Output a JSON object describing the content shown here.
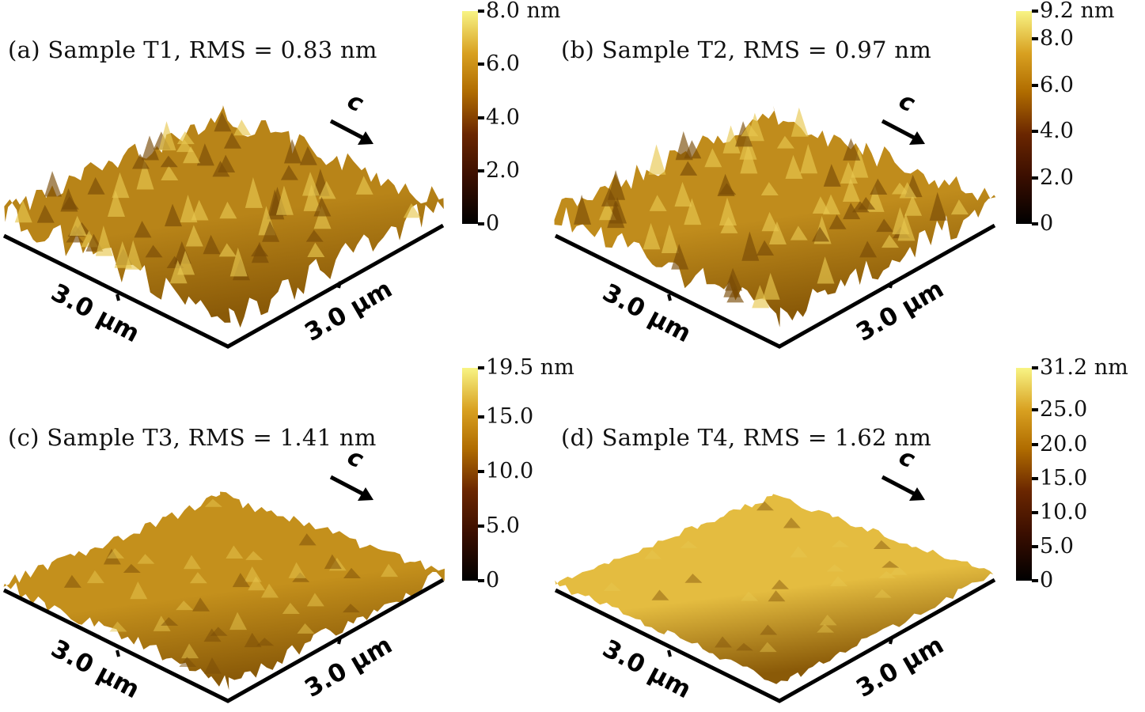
{
  "panels": [
    {
      "id": "a",
      "title": "(a)  Sample T1, RMS = 0.83 nm",
      "max": 8.0,
      "ticks": [
        {
          "v": 0,
          "label": "0"
        },
        {
          "v": 2,
          "label": "2.0"
        },
        {
          "v": 4,
          "label": "4.0"
        },
        {
          "v": 6,
          "label": "6.0"
        },
        {
          "v": 8,
          "label": "8.0 nm"
        }
      ],
      "x_label": "3.0 μm",
      "y_label": "3.0 μm",
      "direction_label": "c",
      "roughness": 1.0,
      "tone": "#b88418"
    },
    {
      "id": "b",
      "title": "(b)  Sample T2, RMS = 0.97 nm",
      "max": 9.2,
      "ticks": [
        {
          "v": 0,
          "label": "0"
        },
        {
          "v": 2,
          "label": "2.0"
        },
        {
          "v": 4,
          "label": "4.0"
        },
        {
          "v": 6,
          "label": "6.0"
        },
        {
          "v": 8,
          "label": "8.0"
        },
        {
          "v": 9.2,
          "label": "9.2 nm"
        }
      ],
      "x_label": "3.0 μm",
      "y_label": "3.0 μm",
      "direction_label": "c",
      "roughness": 1.0,
      "tone": "#c08c1c"
    },
    {
      "id": "c",
      "title": "(c)  Sample T3, RMS = 1.41 nm",
      "max": 19.5,
      "ticks": [
        {
          "v": 0,
          "label": "0"
        },
        {
          "v": 5,
          "label": "5.0"
        },
        {
          "v": 10,
          "label": "10.0"
        },
        {
          "v": 15,
          "label": "15.0"
        },
        {
          "v": 19.5,
          "label": "19.5 nm"
        }
      ],
      "x_label": "3.0 μm",
      "y_label": "3.0 μm",
      "direction_label": "c",
      "roughness": 0.5,
      "tone": "#c4901c"
    },
    {
      "id": "d",
      "title": "(d)  Sample T4, RMS = 1.62 nm",
      "max": 31.2,
      "ticks": [
        {
          "v": 0,
          "label": "0"
        },
        {
          "v": 5,
          "label": "5.0"
        },
        {
          "v": 10,
          "label": "10.0"
        },
        {
          "v": 15,
          "label": "15.0"
        },
        {
          "v": 20,
          "label": "20.0"
        },
        {
          "v": 25,
          "label": "25.0"
        },
        {
          "v": 31.2,
          "label": "31.2 nm"
        }
      ],
      "x_label": "3.0 μm",
      "y_label": "3.0 μm",
      "direction_label": "c",
      "roughness": 0.25,
      "tone": "#e4bc40"
    }
  ]
}
